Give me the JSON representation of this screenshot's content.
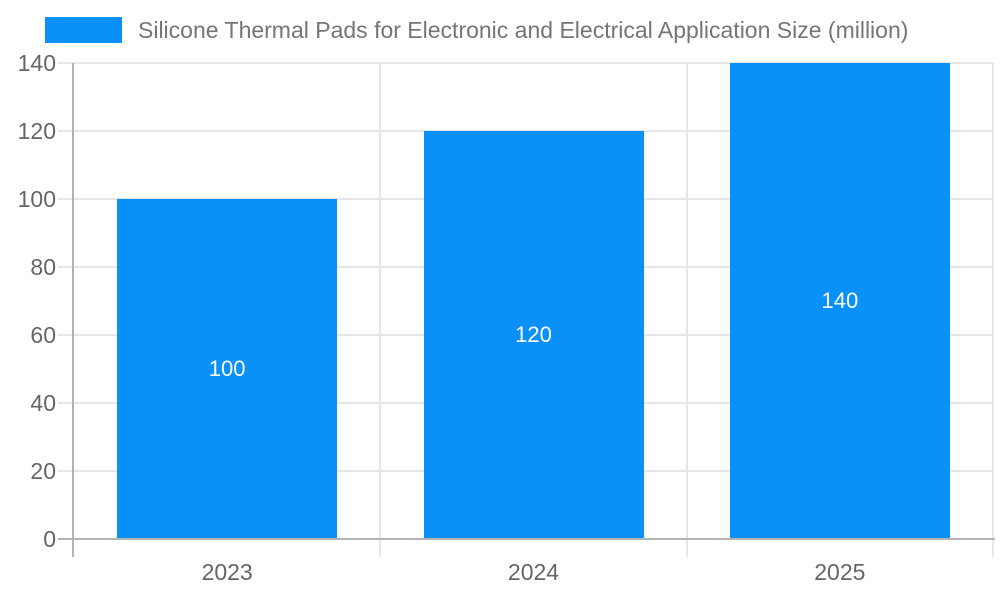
{
  "legend": {
    "swatch_color": "#0990f9",
    "label": "Silicone Thermal Pads for Electronic and Electrical Application Size (million)"
  },
  "colors": {
    "bar": "#0990f9",
    "title_text": "#757575",
    "axis_text": "#666666",
    "gridline": "#e6e6e6",
    "axis_line": "#b3b3b3",
    "data_label": "#ffffff",
    "background": "#ffffff"
  },
  "chart_data": {
    "type": "bar",
    "title": "Silicone Thermal Pads for Electronic and Electrical Application Size (million)",
    "categories": [
      "2023",
      "2024",
      "2025"
    ],
    "values": [
      100,
      120,
      140
    ],
    "data_labels": [
      "100",
      "120",
      "140"
    ],
    "y_ticks": [
      0,
      20,
      40,
      60,
      80,
      100,
      120,
      140
    ],
    "ylim": [
      0,
      140
    ],
    "xlabel": "",
    "ylabel": "",
    "grid": true,
    "legend_position": "top-left",
    "bar_color": "#0990f9",
    "value_label_position": "inside-middle"
  }
}
